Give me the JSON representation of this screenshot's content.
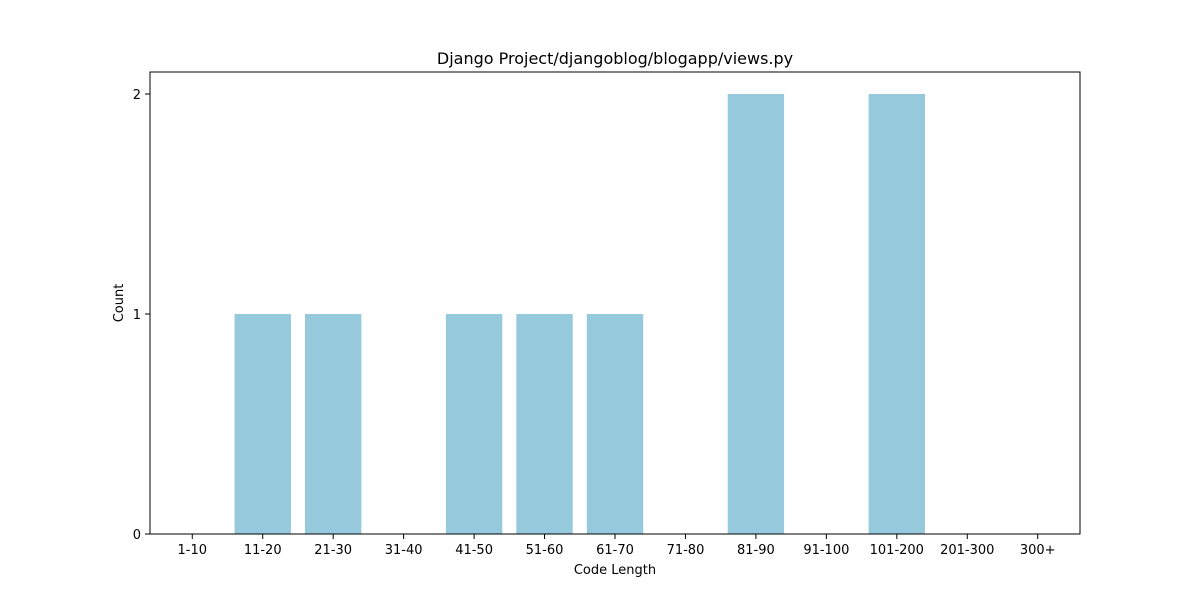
{
  "chart_data": {
    "type": "bar",
    "title": "Django Project/djangoblog/blogapp/views.py",
    "xlabel": "Code Length",
    "ylabel": "Count",
    "categories": [
      "1-10",
      "11-20",
      "21-30",
      "31-40",
      "41-50",
      "51-60",
      "61-70",
      "71-80",
      "81-90",
      "91-100",
      "101-200",
      "201-300",
      "300+"
    ],
    "values": [
      0,
      1,
      1,
      0,
      1,
      1,
      1,
      0,
      2,
      0,
      2,
      0,
      0
    ],
    "ylim": [
      0,
      2.1
    ],
    "yticks": [
      0,
      1,
      2
    ],
    "grid": false,
    "bar_color": "#96c9dc"
  }
}
